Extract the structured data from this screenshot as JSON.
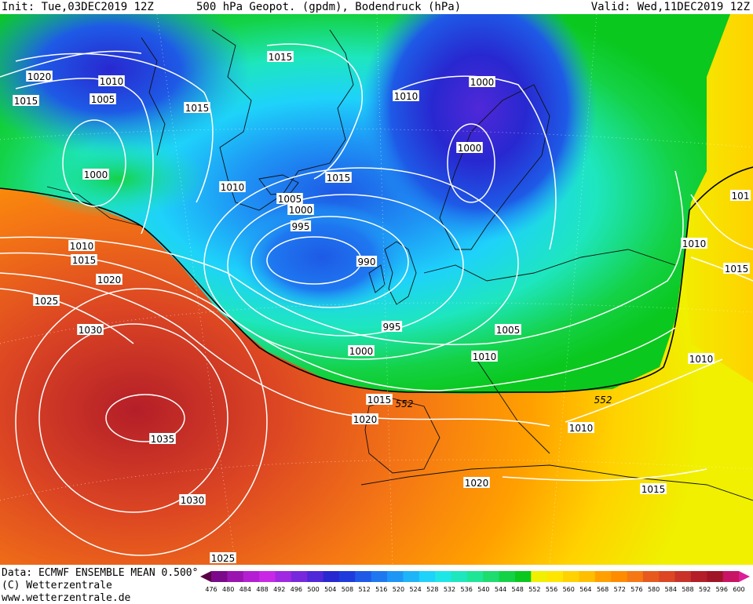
{
  "header": {
    "init": "Init: Tue,03DEC2019 12Z",
    "title": "500 hPa Geopot. (gpdm), Bodendruck (hPa)",
    "valid": "Valid: Wed,11DEC2019 12Z"
  },
  "footer": {
    "data_line": "Data: ECMWF ENSEMBLE MEAN 0.500°",
    "copyright": "(C) Wetterzentrale",
    "website": "www.wetterzentrale.de"
  },
  "legend": {
    "ticks": [
      "476",
      "480",
      "484",
      "488",
      "492",
      "496",
      "500",
      "504",
      "508",
      "512",
      "516",
      "520",
      "524",
      "528",
      "532",
      "536",
      "540",
      "544",
      "548",
      "552",
      "556",
      "560",
      "564",
      "568",
      "572",
      "576",
      "580",
      "584",
      "588",
      "592",
      "596",
      "600"
    ],
    "colors": [
      "#5a0046",
      "#7a0a8a",
      "#9a14b0",
      "#b41ed2",
      "#c828e6",
      "#a028e0",
      "#7828dc",
      "#5028d8",
      "#2828d0",
      "#1e3cdc",
      "#1e5ae6",
      "#1e78f0",
      "#1e96f5",
      "#1eb4f8",
      "#1ed2fa",
      "#1ee6e6",
      "#1ee6be",
      "#1ee696",
      "#1edc6e",
      "#14d246",
      "#0ac81e",
      "#f0f000",
      "#ffe600",
      "#ffd200",
      "#ffbe00",
      "#ffa000",
      "#ff8c00",
      "#f57814",
      "#e65a1e",
      "#dc4623",
      "#c83228",
      "#b41e28",
      "#a01428",
      "#c81464",
      "#dc1e96"
    ]
  },
  "pressure_labels": [
    {
      "text": "1020"
    },
    {
      "text": "1015"
    },
    {
      "text": "1010"
    },
    {
      "text": "1005"
    },
    {
      "text": "1015"
    },
    {
      "text": "1015"
    },
    {
      "text": "1010"
    },
    {
      "text": "1000"
    },
    {
      "text": "1000"
    },
    {
      "text": "1000"
    },
    {
      "text": "1010"
    },
    {
      "text": "1015"
    },
    {
      "text": "1005"
    },
    {
      "text": "1000"
    },
    {
      "text": "995"
    },
    {
      "text": "990"
    },
    {
      "text": "1010"
    },
    {
      "text": "1015"
    },
    {
      "text": "1020"
    },
    {
      "text": "1025"
    },
    {
      "text": "1030"
    },
    {
      "text": "1035"
    },
    {
      "text": "1030"
    },
    {
      "text": "1025"
    },
    {
      "text": "995"
    },
    {
      "text": "1000"
    },
    {
      "text": "1005"
    },
    {
      "text": "1010"
    },
    {
      "text": "1015"
    },
    {
      "text": "1020"
    },
    {
      "text": "1010"
    },
    {
      "text": "1020"
    },
    {
      "text": "1015"
    },
    {
      "text": "1010"
    },
    {
      "text": "1010"
    },
    {
      "text": "1015"
    },
    {
      "text": "101"
    }
  ],
  "geopot_labels": [
    {
      "text": "552"
    },
    {
      "text": "552"
    }
  ]
}
